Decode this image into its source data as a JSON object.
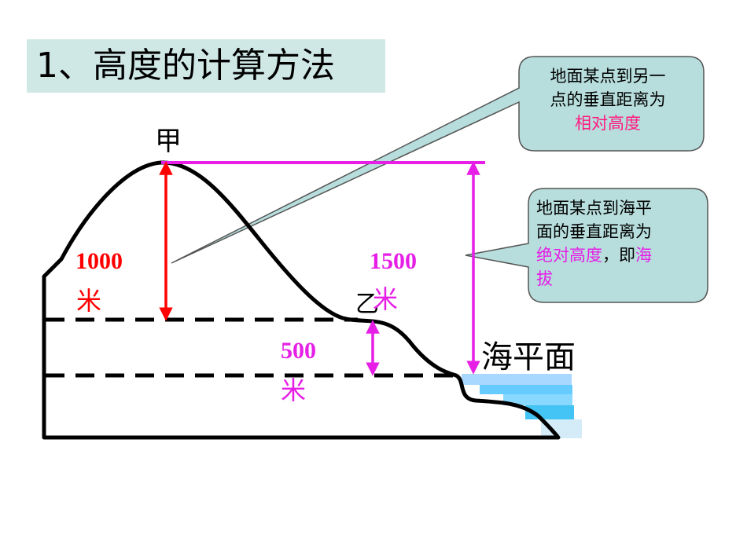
{
  "title": "1、高度的计算方法",
  "labels": {
    "peak": "甲",
    "point_b": "乙",
    "sea_level": "海平面",
    "relative_height_value": "1000",
    "relative_height_unit": "米",
    "absolute_height_value": "1500",
    "absolute_height_unit": "米",
    "base_diff_value": "500",
    "base_diff_unit": "米"
  },
  "callouts": {
    "relative": {
      "line1": "地面某点到另一",
      "line2": "点的垂直距离为",
      "highlight": "相对高度"
    },
    "absolute": {
      "line1": "地面某点到海平",
      "line2": "面的垂直距离为",
      "highlight1": "绝对高度",
      "sep": "，即",
      "highlight2": "海",
      "line4": "拔"
    }
  },
  "colors": {
    "title_bg": "#cfe8e6",
    "callout_bg": "#b7dedd",
    "relative": "#ff0000",
    "absolute": "#e61ee6",
    "highlight": "#ff1a80",
    "water": "#66ccff"
  }
}
